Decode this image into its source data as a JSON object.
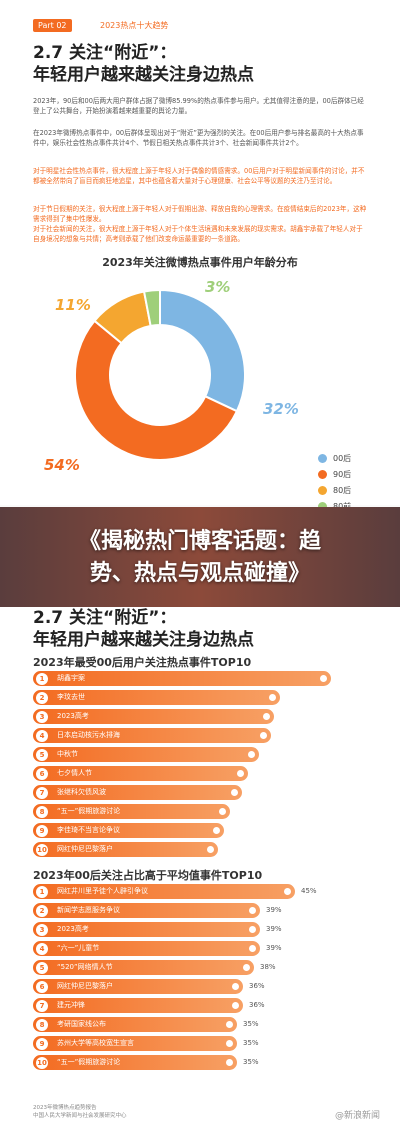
{
  "top": {
    "part_tag": "Part 02",
    "part_title": "2023热点十大趋势",
    "title_line1": "2.7 关注“附近”：",
    "title_line2": "年轻用户越来越关注身边热点",
    "paragraphs": [
      {
        "text": "2023年，90后和00后两大用户群体占据了微博85.99%的热点事件参与用户。尤其值得注意的是，00后群体已经登上了公共舞台，开始扮演着越来越重要的舆论力量。",
        "highlight": false
      },
      {
        "text": "在2023年微博热点事件中，00后群体呈现出对于“附近”更为强烈的关注。在00后用户参与排名最高的十大热点事件中，娱乐社会性热点事件共计4个、节假日相关热点事件共计3个、社会新闻事件共计2个。",
        "highlight": false
      },
      {
        "text": "对于明星社会性热点事件，很大程度上源于年轻人对于偶像的情感需求。00后用户对于明星新闻事件的讨论，并不都被全然带向了盲目而疯狂地追星，其中也蕴含着大量对于心理健康、社会公平等议题的关注乃至讨论。",
        "highlight": true
      },
      {
        "text": "对于节日假期的关注，很大程度上源于年轻人对于假期出游、释放自我的心理需求。在疫情结束后的2023年，这种需求得到了集中性爆发。",
        "highlight": true
      },
      {
        "text": "对于社会新闻的关注，很大程度上源于年轻人对于个体生活境遇和未来发展的现实需求。胡鑫宇承载了年轻人对于自身境况的想象与共情；高考则承载了他们改变命运最重要的一条道路。",
        "highlight": true
      }
    ]
  },
  "chart_data": {
    "type": "pie",
    "title": "2023年关注微博热点事件用户年龄分布",
    "categories": [
      "00后",
      "90后",
      "80后",
      "80前"
    ],
    "values": [
      32,
      54,
      11,
      3
    ],
    "value_labels": [
      "32%",
      "54%",
      "11%",
      "3%"
    ],
    "colors": [
      "#7eb6e3",
      "#f36b21",
      "#f4a630",
      "#9fcf7a"
    ],
    "legend_position": "bottom-right"
  },
  "banner": {
    "line1": "《揭秘热门博客话题：趋",
    "line2": "势、热点与观点碰撞》"
  },
  "bottom": {
    "title_line1": "2.7 关注“附近”：",
    "title_line2": "年轻用户越来越关注身边热点",
    "list1_title": "2023年最受00后用户关注热点事件TOP10",
    "list1": [
      {
        "rank": "1",
        "label": "胡鑫宇案",
        "score": 1.0
      },
      {
        "rank": "2",
        "label": "李玟去世",
        "score": 0.83
      },
      {
        "rank": "3",
        "label": "2023高考",
        "score": 0.81
      },
      {
        "rank": "4",
        "label": "日本启动核污水排海",
        "score": 0.8
      },
      {
        "rank": "5",
        "label": "中秋节",
        "score": 0.76
      },
      {
        "rank": "6",
        "label": "七夕情人节",
        "score": 0.72
      },
      {
        "rank": "7",
        "label": "张继科欠债风波",
        "score": 0.7
      },
      {
        "rank": "8",
        "label": "“五一”假期旅游讨论",
        "score": 0.66
      },
      {
        "rank": "9",
        "label": "李佳琦不当言论争议",
        "score": 0.64
      },
      {
        "rank": "10",
        "label": "网红仲尼巴黎落户",
        "score": 0.62
      }
    ],
    "list2_title": "2023年00后关注占比高于平均值事件TOP10",
    "list2": [
      {
        "rank": "1",
        "label": "网红井川里予徒个人辟引争议",
        "value": "45%",
        "pct": 45
      },
      {
        "rank": "2",
        "label": "新闻学志愿服务争议",
        "value": "39%",
        "pct": 39
      },
      {
        "rank": "3",
        "label": "2023高考",
        "value": "39%",
        "pct": 39
      },
      {
        "rank": "4",
        "label": "“六一”儿童节",
        "value": "39%",
        "pct": 39
      },
      {
        "rank": "5",
        "label": "“520”网络情人节",
        "value": "38%",
        "pct": 38
      },
      {
        "rank": "6",
        "label": "网红仲尼巴黎落户",
        "value": "36%",
        "pct": 36
      },
      {
        "rank": "7",
        "label": "建元冲锋",
        "value": "36%",
        "pct": 36
      },
      {
        "rank": "8",
        "label": "考研国家线公布",
        "value": "35%",
        "pct": 35
      },
      {
        "rank": "9",
        "label": "苏州大学等高校宽生宣言",
        "value": "35%",
        "pct": 35
      },
      {
        "rank": "10",
        "label": "“五一”假期旅游讨论",
        "value": "35%",
        "pct": 35
      }
    ],
    "source_line1": "2023年微博热点趋势报告",
    "source_line2": "中国人民大学新闻与社会发展研究中心",
    "watermark": "@新浪新闻"
  }
}
